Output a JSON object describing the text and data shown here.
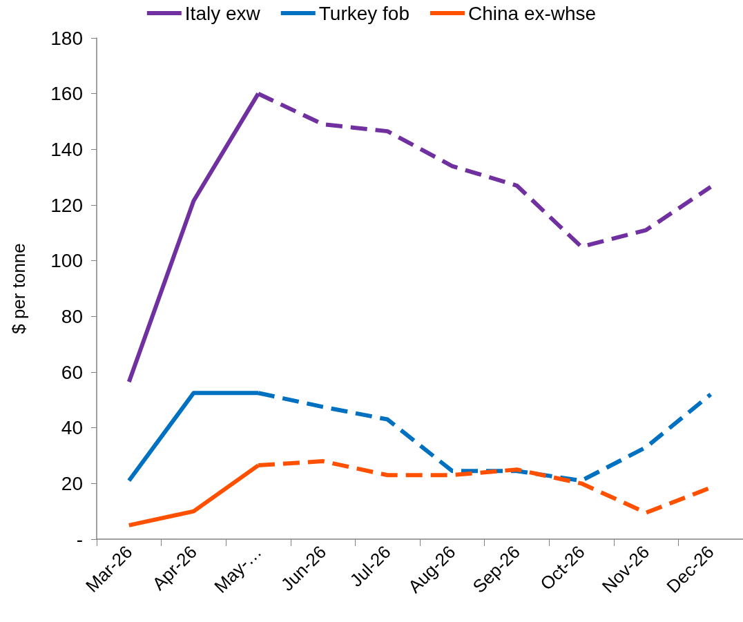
{
  "chart_data": {
    "type": "line",
    "ylabel": "$ per tonne",
    "categories": [
      "Mar-26",
      "Apr-26",
      "May-…",
      "Jun-26",
      "Jul-26",
      "Aug-26",
      "Sep-26",
      "Oct-26",
      "Nov-26",
      "Dec-26"
    ],
    "series": [
      {
        "name": "Italy exw",
        "color": "#7030a0",
        "line_style": "solid",
        "values": [
          56.5,
          121.5,
          160,
          null,
          null,
          null,
          null,
          null,
          null,
          null
        ]
      },
      {
        "name": "Turkey fob",
        "color": "#0070c0",
        "line_style": "solid",
        "values": [
          21,
          52.5,
          52.5,
          null,
          null,
          null,
          null,
          null,
          null,
          null
        ]
      },
      {
        "name": "China ex-whse",
        "color": "#ff5000",
        "line_style": "solid",
        "values": [
          5,
          10,
          26.5,
          null,
          null,
          null,
          null,
          null,
          null,
          null
        ]
      },
      {
        "color": "#7030a0",
        "line_style": "dashed",
        "values": [
          null,
          null,
          160,
          149,
          146.5,
          134,
          127,
          105,
          111,
          126.5
        ]
      },
      {
        "color": "#0070c0",
        "line_style": "dashed",
        "values": [
          null,
          null,
          52.5,
          47.5,
          43,
          24.5,
          24.5,
          21,
          33,
          52
        ]
      },
      {
        "color": "#ff5000",
        "line_style": "dashed",
        "values": [
          null,
          null,
          26.5,
          28,
          23,
          23,
          25,
          20,
          9.5,
          18.5
        ]
      }
    ],
    "ylim": [
      0,
      180
    ],
    "yticks": [
      {
        "value": 0,
        "label": "-"
      },
      20,
      40,
      60,
      80,
      100,
      120,
      140,
      160,
      180
    ],
    "grid": false,
    "legend": "top",
    "marker": "none"
  }
}
